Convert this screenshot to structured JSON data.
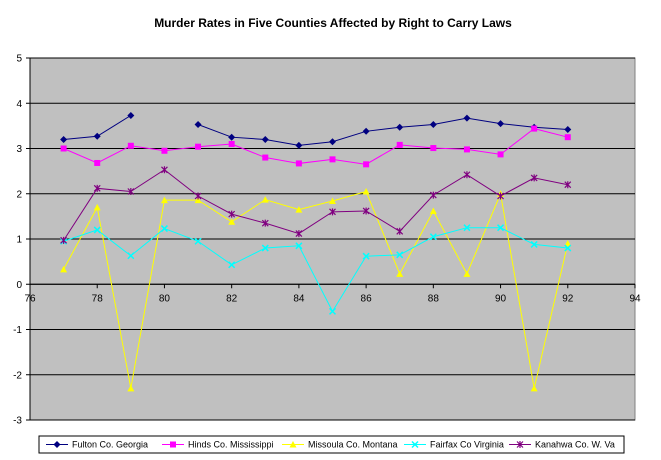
{
  "chart_data": {
    "type": "line",
    "title": "Murder Rates in Five Counties Affected by Right to Carry Laws",
    "xlabel": "",
    "ylabel": "",
    "xlim": [
      76,
      94
    ],
    "ylim": [
      -3,
      5
    ],
    "x_ticks": [
      76,
      78,
      80,
      82,
      84,
      86,
      88,
      90,
      92,
      94
    ],
    "y_ticks": [
      -3,
      -2,
      -1,
      0,
      1,
      2,
      3,
      4,
      5
    ],
    "grid": "horizontal",
    "legend_position": "bottom",
    "plot_background": "#C0C0C0",
    "x": [
      77,
      78,
      79,
      80,
      81,
      82,
      83,
      84,
      85,
      86,
      87,
      88,
      89,
      90,
      91,
      92
    ],
    "series": [
      {
        "name": "Fulton Co. Georgia",
        "color": "#000080",
        "marker": "diamond",
        "values": [
          3.2,
          3.27,
          3.73,
          null,
          3.53,
          3.25,
          3.2,
          3.07,
          3.15,
          3.38,
          3.47,
          3.53,
          3.67,
          3.55,
          3.47,
          3.42
        ]
      },
      {
        "name": "Hinds Co. Mississippi",
        "color": "#FF00FF",
        "marker": "square",
        "values": [
          3.0,
          2.68,
          3.06,
          2.95,
          3.04,
          3.1,
          2.8,
          2.67,
          2.76,
          2.65,
          3.08,
          3.01,
          2.98,
          2.87,
          3.44,
          3.25
        ]
      },
      {
        "name": "Missoula Co. Montana",
        "color": "#FFFF00",
        "marker": "triangle",
        "values": [
          0.33,
          1.7,
          -2.3,
          1.86,
          1.86,
          1.38,
          1.87,
          1.65,
          1.84,
          2.05,
          0.23,
          1.62,
          0.23,
          2.0,
          -2.3,
          0.9
        ]
      },
      {
        "name": "Fairfax Co Virginia",
        "color": "#00FFFF",
        "marker": "x",
        "values": [
          0.95,
          1.2,
          0.63,
          1.23,
          0.95,
          0.43,
          0.8,
          0.85,
          -0.6,
          0.62,
          0.65,
          1.05,
          1.25,
          1.25,
          0.88,
          0.8
        ]
      },
      {
        "name": "Kanahwa Co. W. Va",
        "color": "#800080",
        "marker": "star",
        "values": [
          0.97,
          2.12,
          2.05,
          2.53,
          1.95,
          1.55,
          1.35,
          1.12,
          1.6,
          1.62,
          1.17,
          1.97,
          2.42,
          1.95,
          2.35,
          2.2
        ]
      }
    ]
  }
}
